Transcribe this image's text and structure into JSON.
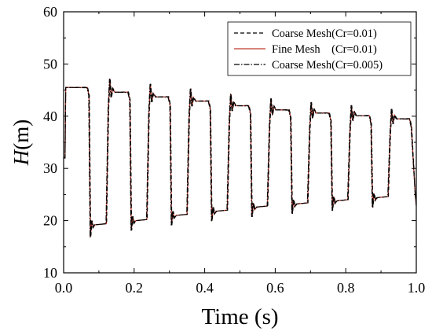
{
  "chart_data": {
    "type": "line",
    "xlabel": "Time (s)",
    "ylabel_italic": "H",
    "ylabel_unit": "(m)",
    "xlim": [
      0.0,
      1.0
    ],
    "ylim": [
      10,
      60
    ],
    "xticks": [
      0.0,
      0.2,
      0.4,
      0.6,
      0.8,
      1.0
    ],
    "xtick_labels": [
      "0.0",
      "0.2",
      "0.4",
      "0.6",
      "0.8",
      "1.0"
    ],
    "yticks": [
      10,
      20,
      30,
      40,
      50,
      60
    ],
    "ytick_labels": [
      "10",
      "20",
      "30",
      "40",
      "50",
      "60"
    ],
    "grid": false,
    "legend_position": "top-right",
    "series": [
      {
        "name": "Coarse Mesh(Cr=0.01)",
        "color": "#000000",
        "style": "dashed"
      },
      {
        "name": "Fine Mesh    (Cr=0.01)",
        "color": "#c0392b",
        "style": "solid"
      },
      {
        "name": "Coarse Mesh(Cr=0.005)",
        "color": "#000000",
        "style": "dashdot"
      }
    ],
    "pulse_edges": {
      "fall_times": [
        0.071,
        0.187,
        0.301,
        0.415,
        0.529,
        0.643,
        0.757,
        0.871,
        0.985
      ],
      "rise_times": [
        0.125,
        0.24,
        0.354,
        0.468,
        0.582,
        0.696,
        0.81,
        0.924
      ],
      "high_levels": [
        45.5,
        44.6,
        43.7,
        42.9,
        42.0,
        41.2,
        40.6,
        40.1,
        39.5
      ],
      "low_levels": [
        19.0,
        19.8,
        20.8,
        21.6,
        22.4,
        23.0,
        23.6,
        24.2
      ],
      "start": [
        0.0,
        32.0
      ],
      "end": [
        1.0,
        23.0
      ]
    }
  }
}
